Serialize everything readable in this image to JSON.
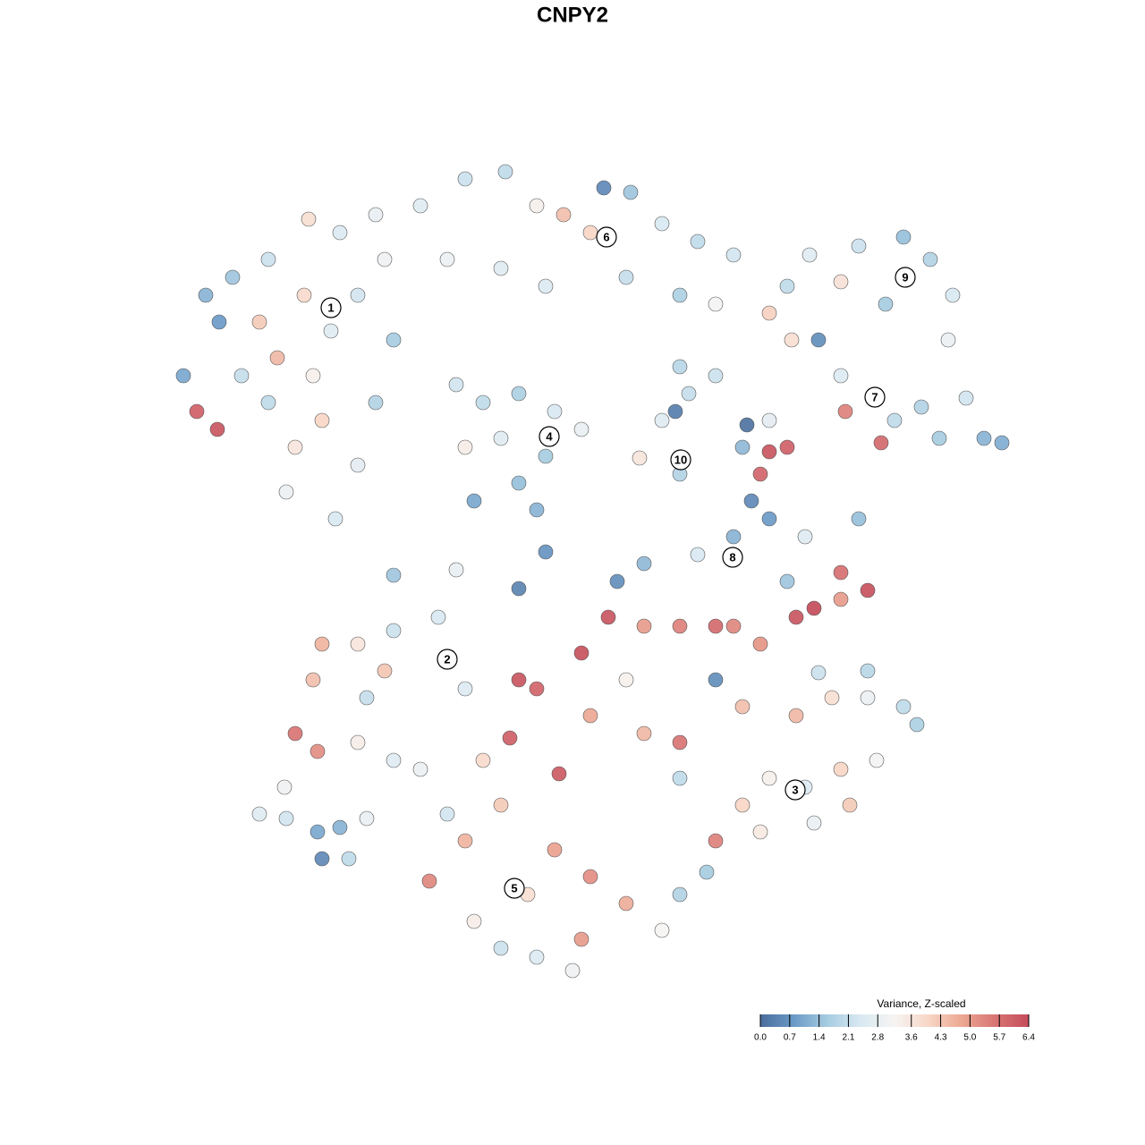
{
  "chart_data": {
    "type": "scatter",
    "title": "CNPY2",
    "x": [
      20.5,
      22,
      24.3,
      23,
      26,
      30,
      34.5,
      38,
      42,
      29,
      31,
      34,
      37,
      40,
      43,
      30,
      33,
      36,
      32,
      37.5,
      40,
      42,
      27,
      35,
      44,
      24.5,
      47,
      52,
      56.5,
      60,
      63,
      66,
      67.5,
      70.5,
      74,
      78,
      82,
      56,
      50,
      61,
      70,
      76,
      80,
      90.5,
      96,
      101,
      104,
      106.5,
      94,
      99,
      106,
      88,
      86,
      88.5,
      91.5,
      94,
      98,
      103,
      108,
      110,
      112,
      105,
      100,
      94.5,
      98.5,
      86,
      80,
      76,
      51,
      54,
      58,
      62,
      65,
      61,
      58,
      53,
      52,
      56,
      60,
      74,
      77,
      76,
      75.5,
      83.5,
      71.5,
      83,
      86,
      88,
      85,
      84,
      86,
      82,
      90,
      96,
      94,
      97,
      91,
      89,
      94,
      88,
      78,
      72,
      69,
      58,
      61,
      44,
      51,
      36,
      40,
      44,
      49,
      43,
      35,
      33,
      35.5,
      40,
      41,
      44,
      47,
      52,
      58,
      60,
      57,
      62.5,
      65,
      68,
      72,
      76,
      80,
      82,
      85,
      70,
      66,
      72,
      76,
      80,
      54,
      56,
      52,
      48,
      59,
      62,
      66,
      70,
      65,
      60,
      56,
      53,
      74,
      76,
      64,
      50,
      89,
      93,
      97,
      101,
      102.5,
      98,
      94,
      90,
      86,
      83,
      80,
      79,
      85,
      91,
      95,
      97,
      91.5,
      83,
      76,
      29,
      32,
      35.5,
      36,
      38,
      39,
      41,
      31.8
    ],
    "y": [
      86,
      82,
      80,
      95,
      97,
      99,
      103.5,
      102,
      104,
      92,
      88,
      95,
      91,
      95,
      99,
      83,
      78,
      81,
      73,
      70,
      76,
      83,
      86,
      86,
      90,
      92,
      105,
      108,
      108.8,
      105,
      104,
      102,
      107,
      106.5,
      103,
      101,
      99.5,
      98,
      99,
      96,
      97,
      95,
      94,
      99.5,
      100.5,
      101.5,
      99,
      95,
      96.5,
      94,
      90,
      96,
      93,
      90,
      90,
      86,
      83.5,
      82.5,
      83.5,
      79,
      78.5,
      79,
      81,
      82,
      78.5,
      81,
      86,
      87,
      85,
      83,
      84,
      82,
      80,
      77,
      74,
      72,
      78,
      79,
      71,
      81,
      84,
      75,
      82,
      80.5,
      76.8,
      78,
      77.5,
      78,
      75,
      72,
      70,
      68,
      68,
      70,
      64,
      62,
      60,
      59,
      61,
      63,
      66,
      65,
      63,
      62.2,
      66.3,
      63.7,
      64.3,
      56,
      56,
      57.5,
      59,
      53,
      52,
      46,
      44,
      45,
      50,
      43,
      42,
      51,
      52,
      51,
      45.5,
      41.5,
      55,
      59,
      58,
      58,
      58,
      58,
      56,
      52,
      48,
      46,
      45,
      52,
      43,
      38,
      34,
      29.5,
      28,
      33,
      30,
      27,
      23,
      21,
      22,
      25,
      24,
      28,
      19.5,
      37,
      48,
      50,
      50,
      49,
      47,
      43,
      42,
      40,
      41,
      38,
      34,
      30.5,
      35,
      36,
      38,
      53,
      52.8,
      49,
      41,
      37,
      36.5,
      35,
      32,
      35.5,
      32,
      36.5,
      40
    ],
    "values": [
      1.0,
      6.0,
      6.2,
      1.2,
      1.5,
      2.2,
      3.8,
      2.5,
      2.8,
      4.2,
      4.5,
      3.9,
      2.6,
      2.3,
      3.0,
      2.0,
      3.6,
      4.0,
      2.9,
      2.4,
      2.7,
      1.8,
      2.1,
      3.3,
      1.6,
      0.8,
      2.6,
      2.2,
      2.0,
      3.3,
      4.4,
      4.0,
      0.5,
      1.5,
      2.4,
      2.0,
      2.3,
      2.6,
      2.9,
      2.5,
      2.1,
      1.7,
      3.1,
      2.6,
      2.2,
      1.4,
      1.8,
      2.4,
      3.7,
      1.6,
      2.9,
      2.0,
      4.1,
      3.8,
      0.6,
      2.5,
      1.3,
      1.8,
      2.3,
      1.2,
      1.1,
      1.6,
      2.0,
      5.4,
      5.8,
      2.7,
      2.2,
      1.9,
      2.3,
      2.0,
      1.7,
      2.4,
      2.8,
      1.6,
      1.4,
      1.0,
      3.4,
      2.6,
      1.2,
      2.6,
      2.1,
      1.8,
      0.3,
      0.1,
      3.6,
      1.3,
      6.2,
      6.0,
      5.9,
      0.5,
      0.8,
      1.2,
      2.6,
      1.4,
      5.7,
      6.3,
      6.4,
      6.2,
      5.0,
      1.5,
      2.4,
      1.3,
      0.6,
      0.4,
      0.7,
      1.5,
      2.8,
      4.6,
      3.6,
      2.2,
      2.4,
      4.3,
      4.4,
      5.6,
      5.2,
      3.4,
      2.1,
      2.6,
      2.9,
      2.5,
      6.2,
      5.9,
      6.0,
      6.1,
      6.3,
      6.2,
      5.0,
      5.4,
      5.8,
      5.3,
      5.1,
      3.3,
      4.8,
      4.5,
      5.6,
      0.6,
      3.9,
      4.2,
      4.6,
      5.3,
      3.8,
      4.9,
      5.2,
      4.7,
      5.0,
      2.5,
      2.2,
      3.4,
      3.2,
      1.8,
      3.0,
      2.3,
      4.5,
      3.8,
      2.9,
      2.0,
      1.7,
      3.1,
      4.0,
      2.5,
      3.3,
      4.0,
      5.4,
      1.6,
      3.5,
      2.8,
      4.2,
      1.9,
      2.2,
      4.4,
      2.0,
      2.6,
      2.3,
      1.0,
      0.5,
      1.2,
      2.0,
      2.8,
      3.0
    ],
    "clusters": [
      {
        "label": "1",
        "x": 37,
        "y": 93.6
      },
      {
        "label": "2",
        "x": 50,
        "y": 54.3
      },
      {
        "label": "3",
        "x": 88.9,
        "y": 39.7
      },
      {
        "label": "4",
        "x": 61.4,
        "y": 79.2
      },
      {
        "label": "5",
        "x": 57.5,
        "y": 28.7
      },
      {
        "label": "6",
        "x": 67.8,
        "y": 101.5
      },
      {
        "label": "7",
        "x": 97.8,
        "y": 83.6
      },
      {
        "label": "8",
        "x": 81.9,
        "y": 65.7
      },
      {
        "label": "9",
        "x": 101.2,
        "y": 97
      },
      {
        "label": "10",
        "x": 76.1,
        "y": 76.6
      }
    ],
    "colorbar": {
      "title": "Variance, Z-scaled",
      "lim": [
        0,
        6.4
      ],
      "ticks": [
        {
          "value": 0,
          "label": "0.0"
        },
        0.7,
        1.4,
        2.1,
        2.8,
        3.6,
        4.3,
        {
          "value": 5,
          "label": "5.0"
        },
        5.7,
        6.4
      ],
      "colors": [
        "#4a6d9c",
        "#6b9ac7",
        "#a6cce1",
        "#d9e9f2",
        "#f6f4f2",
        "#f7d6c6",
        "#eca892",
        "#d97474",
        "#c44c5a"
      ]
    }
  }
}
